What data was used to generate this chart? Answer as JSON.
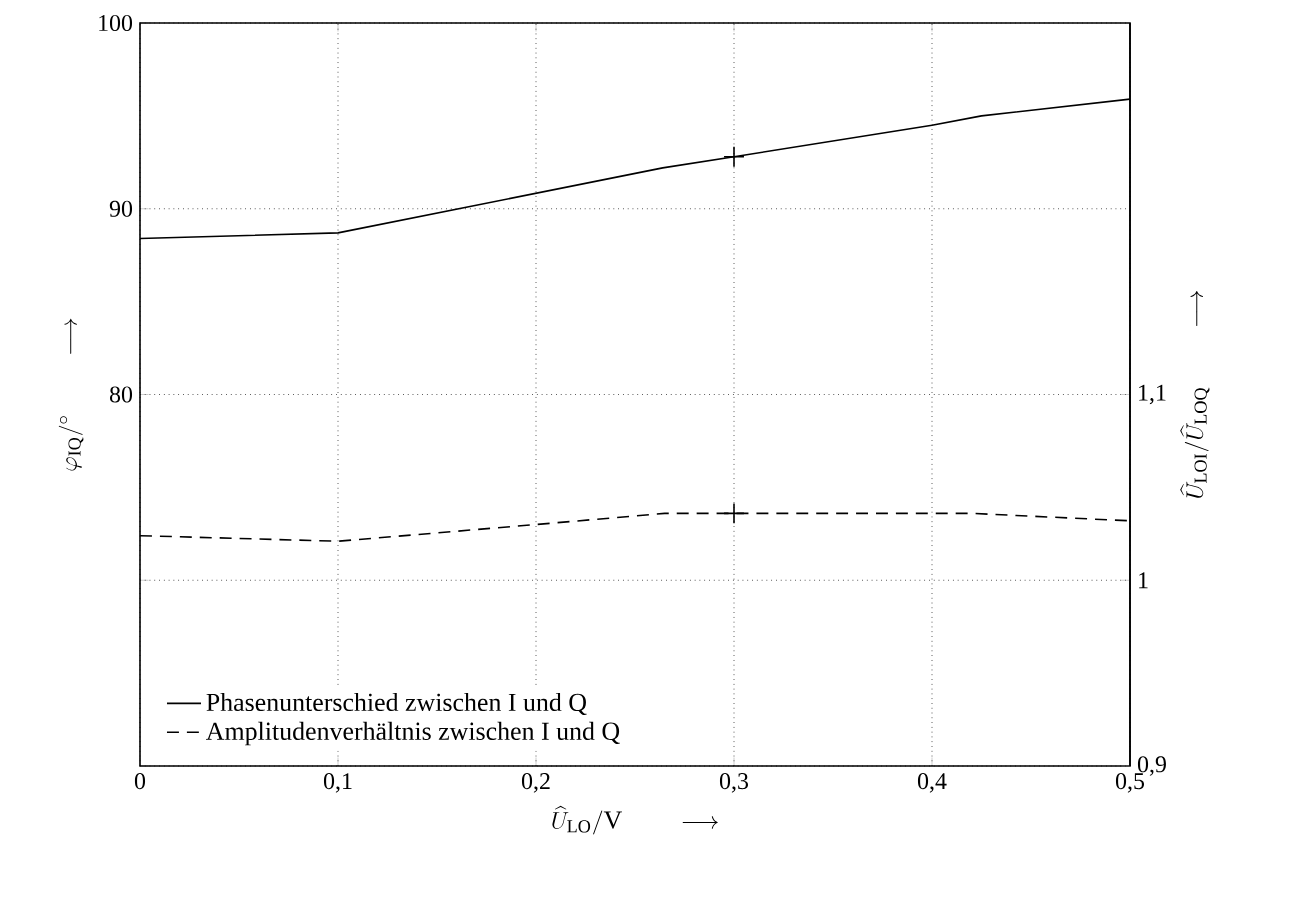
{
  "chart_data": {
    "type": "line",
    "xlabel": "\\widehat{U}_{\\mathrm{LO}}/\\mathrm{V}\\qquad\\longrightarrow",
    "ylabel": "\\varphi_{\\mathrm{IQ}}/^{\\circ}\\qquad\\longrightarrow",
    "y2label": "\\widehat{U}_{\\mathrm{LOI}}/\\widehat{U}_{\\mathrm{LOQ}}\\qquad\\longrightarrow",
    "xlim": [
      0,
      0.5
    ],
    "xticks": [
      0,
      {
        "value": 0.1,
        "label": "0,1"
      },
      {
        "value": 0.2,
        "label": "0,2"
      },
      {
        "value": 0.3,
        "label": "0,3"
      },
      {
        "value": 0.4,
        "label": "0,4"
      },
      {
        "value": 0.5,
        "label": "0,5"
      }
    ],
    "ylim": [
      60,
      100
    ],
    "yticks": [
      {
        "value": 60,
        "label": null
      },
      {
        "value": 70,
        "label": null
      },
      80,
      90,
      100
    ],
    "y2lim": [
      0.9,
      1.3
    ],
    "y2ticks": [
      {
        "value": 0.9,
        "label": "0,9"
      },
      1,
      {
        "value": 1.1,
        "label": "1,1"
      }
    ],
    "grid": true,
    "legend": "bottom left",
    "series": [
      {
        "name": "Phasenunterschied zwischen I und Q",
        "color": "#000000",
        "line_style": "solid",
        "x": [
          0,
          0.1,
          0.264,
          0.3,
          0.4,
          0.425,
          0.5
        ],
        "values": [
          88.4,
          88.7,
          92.2,
          92.8,
          94.5,
          95.0,
          95.9
        ]
      },
      {
        "name": "Amplitudenverhältnis zwischen I und Q",
        "color": "#000000",
        "line_style": "dashed",
        "axis": "y2",
        "x": [
          0,
          0.1,
          0.2,
          0.265,
          0.3,
          0.42,
          0.5
        ],
        "values": [
          1.024,
          1.021,
          1.03,
          1.036,
          1.036,
          1.036,
          1.032
        ]
      },
      {
        "type": "scatter",
        "color": "#000000",
        "marker": "cross",
        "x": [
          0.3
        ],
        "values": [
          92.8
        ]
      },
      {
        "type": "scatter",
        "color": "#000000",
        "marker": "cross",
        "axis": "y2",
        "x": [
          0.3
        ],
        "values": [
          1.036
        ]
      }
    ]
  }
}
